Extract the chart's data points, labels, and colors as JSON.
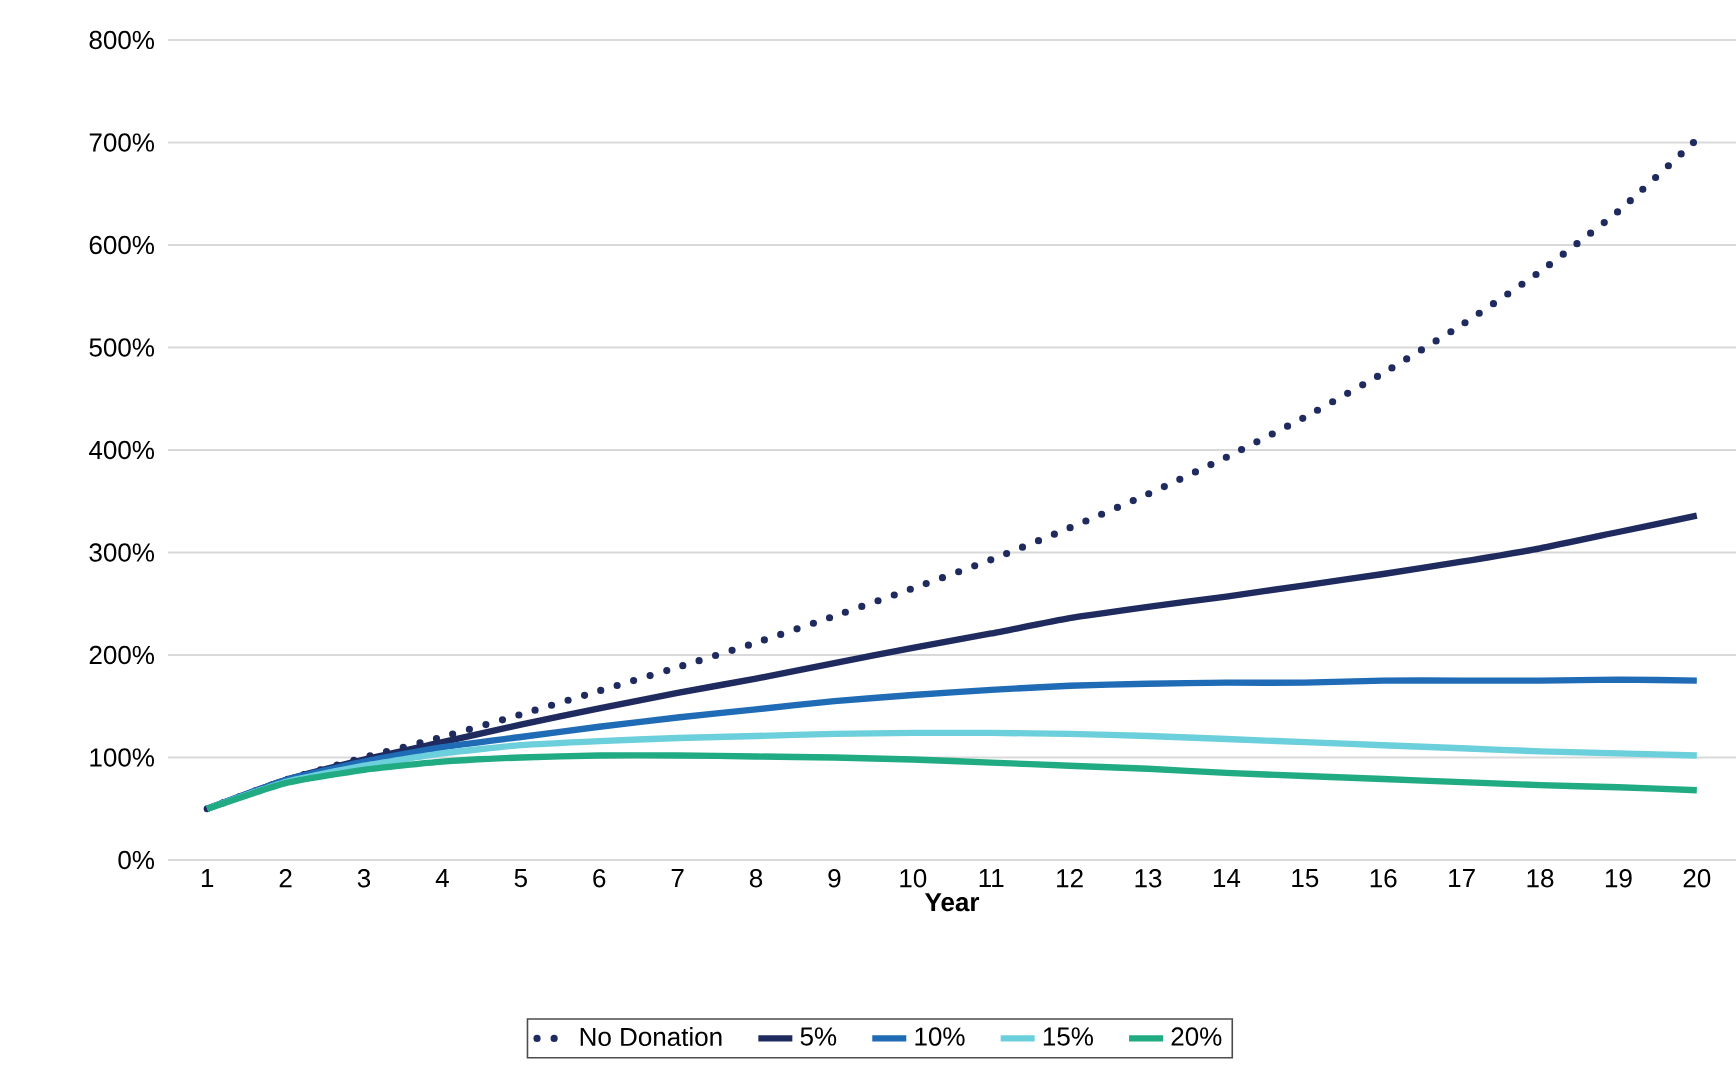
{
  "chart_data": {
    "type": "line",
    "xlabel": "Year",
    "x": [
      1,
      2,
      3,
      4,
      5,
      6,
      7,
      8,
      9,
      10,
      11,
      12,
      13,
      14,
      15,
      16,
      17,
      18,
      19,
      20
    ],
    "xlim": [
      0.5,
      20.5
    ],
    "xticks": [
      1,
      2,
      3,
      4,
      5,
      6,
      7,
      8,
      9,
      10,
      11,
      12,
      13,
      14,
      15,
      16,
      17,
      18,
      19,
      20
    ],
    "ylim": [
      0,
      800
    ],
    "yticks": [
      {
        "value": 0,
        "label": "0%"
      },
      {
        "value": 100,
        "label": "100%"
      },
      {
        "value": 200,
        "label": "200%"
      },
      {
        "value": 300,
        "label": "300%"
      },
      {
        "value": 400,
        "label": "400%"
      },
      {
        "value": 500,
        "label": "500%"
      },
      {
        "value": 600,
        "label": "600%"
      },
      {
        "value": 700,
        "label": "700%"
      },
      {
        "value": 800,
        "label": "800%"
      }
    ],
    "grid": "y",
    "legend": "bottom",
    "marker": "none",
    "series": [
      {
        "name": "No Donation",
        "color": "#1f2a5e",
        "line_style": "dotted",
        "values": [
          50,
          78,
          100,
          120,
          142,
          165,
          188,
          212,
          238,
          265,
          293,
          324,
          357,
          393,
          432,
          475,
          522,
          574,
          633,
          703
        ]
      },
      {
        "name": "5%",
        "color": "#1f2a5e",
        "line_style": "solid",
        "values": [
          50,
          78,
          98,
          115,
          132,
          148,
          163,
          177,
          192,
          207,
          221,
          236,
          247,
          257,
          268,
          279,
          291,
          304,
          320,
          336
        ]
      },
      {
        "name": "10%",
        "color": "#1f6bb5",
        "line_style": "solid",
        "values": [
          50,
          78,
          96,
          110,
          120,
          130,
          139,
          147,
          155,
          161,
          166,
          170,
          172,
          173,
          173,
          175,
          175,
          175,
          176,
          175
        ]
      },
      {
        "name": "15%",
        "color": "#6ccfdc",
        "line_style": "solid",
        "values": [
          50,
          76,
          92,
          104,
          112,
          116,
          119,
          121,
          123,
          124,
          124,
          123,
          121,
          118,
          115,
          112,
          109,
          106,
          104,
          102
        ]
      },
      {
        "name": "20%",
        "color": "#21ab82",
        "line_style": "solid",
        "values": [
          50,
          75,
          88,
          96,
          100,
          102,
          102,
          101,
          100,
          98,
          95,
          92,
          89,
          85,
          82,
          79,
          76,
          73,
          71,
          68
        ]
      }
    ]
  }
}
